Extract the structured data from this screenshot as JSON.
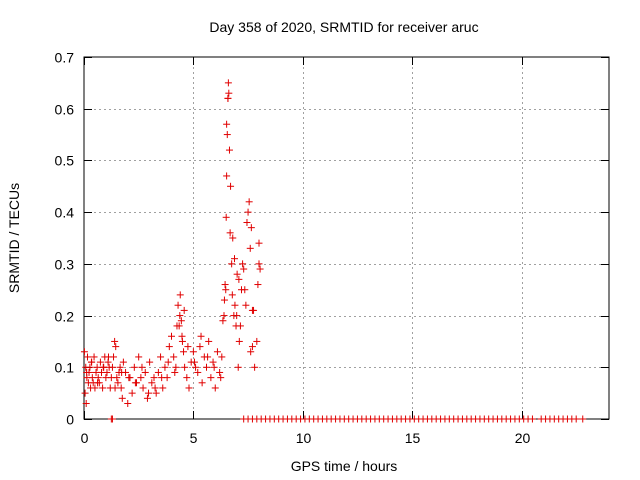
{
  "chart_data": {
    "type": "scatter",
    "title": "Day 358 of 2020, SRMTID for receiver aruc",
    "xlabel": "GPS time / hours",
    "ylabel": "SRMTID / TECUs",
    "xlim": [
      0,
      24
    ],
    "ylim": [
      0,
      0.7
    ],
    "xticks": [
      0,
      5,
      10,
      15,
      20
    ],
    "yticks": [
      0,
      0.1,
      0.2,
      0.3,
      0.4,
      0.5,
      0.6,
      0.7
    ],
    "xtick_labels": [
      "0",
      "5",
      "10",
      "15",
      "20"
    ],
    "ytick_labels": [
      "0",
      "0.1",
      "0.2",
      "0.3",
      "0.4",
      "0.5",
      "0.6",
      "0.7"
    ],
    "grid": true,
    "marker": "+",
    "color": "#e00000",
    "series": [
      {
        "name": "SRMTID",
        "x": [
          0.02,
          0.05,
          0.08,
          0.1,
          0.13,
          0.16,
          0.2,
          0.23,
          0.27,
          0.3,
          0.34,
          0.38,
          0.42,
          0.46,
          0.5,
          0.55,
          0.6,
          0.65,
          0.7,
          0.75,
          0.8,
          0.85,
          0.9,
          0.95,
          1.0,
          1.05,
          1.1,
          1.15,
          1.2,
          1.25,
          1.3,
          1.35,
          1.4,
          1.45,
          1.5,
          1.55,
          1.6,
          1.65,
          1.7,
          1.75,
          1.8,
          1.9,
          2.0,
          2.1,
          2.2,
          2.3,
          2.4,
          2.5,
          2.6,
          2.7,
          2.8,
          2.9,
          3.0,
          3.1,
          3.2,
          3.3,
          3.4,
          3.5,
          3.6,
          3.7,
          3.8,
          3.9,
          4.0,
          4.1,
          4.2,
          4.3,
          4.35,
          4.4,
          4.45,
          4.5,
          4.55,
          4.6,
          4.7,
          4.8,
          4.9,
          5.0,
          5.1,
          5.2,
          5.3,
          5.4,
          5.5,
          5.6,
          5.7,
          5.8,
          5.9,
          6.0,
          6.1,
          6.2,
          6.3,
          6.4,
          6.45,
          6.5,
          6.52,
          6.55,
          6.58,
          6.6,
          6.62,
          6.65,
          6.7,
          6.75,
          6.8,
          6.85,
          6.9,
          6.95,
          7.0,
          7.05,
          7.1,
          7.2,
          7.3,
          7.4,
          7.5,
          7.55,
          7.6,
          7.65,
          7.7,
          7.8,
          7.9,
          8.0,
          8.05,
          0.12,
          0.35,
          0.62,
          0.88,
          1.12,
          1.42,
          1.72,
          2.05,
          2.35,
          2.65,
          2.95,
          3.25,
          3.55,
          3.85,
          4.15,
          4.25,
          4.38,
          4.48,
          4.58,
          4.75,
          5.05,
          5.35,
          5.65,
          5.95,
          6.25,
          6.35,
          6.42,
          6.48,
          6.52,
          6.58,
          6.68,
          6.78,
          6.88,
          6.98,
          7.08,
          7.15,
          7.25,
          7.35,
          7.45,
          7.62,
          7.7,
          7.75,
          7.95,
          8.0,
          1.25,
          1.3,
          7.3,
          7.5,
          7.7,
          7.9,
          8.1,
          8.3,
          8.5,
          8.7,
          8.9,
          9.1,
          9.3,
          9.5,
          9.7,
          9.9,
          10.1,
          10.3,
          10.5,
          10.7,
          10.9,
          11.1,
          11.3,
          11.5,
          11.7,
          11.9,
          12.1,
          12.3,
          12.5,
          12.7,
          12.9,
          13.1,
          13.3,
          13.5,
          13.7,
          13.9,
          14.1,
          14.3,
          14.5,
          14.7,
          14.9,
          15.1,
          15.3,
          15.5,
          15.7,
          15.9,
          16.1,
          16.3,
          16.5,
          16.7,
          16.9,
          17.1,
          17.3,
          17.5,
          17.7,
          17.9,
          18.1,
          18.3,
          18.5,
          18.7,
          18.9,
          19.1,
          19.3,
          19.5,
          19.7,
          19.9,
          20.1,
          20.3,
          20.5,
          20.9,
          21.1,
          21.3,
          21.5,
          21.7,
          21.9,
          22.1,
          22.3,
          22.5,
          22.8
        ],
        "y": [
          0.13,
          0.05,
          0.1,
          0.03,
          0.08,
          0.12,
          0.07,
          0.09,
          0.1,
          0.06,
          0.11,
          0.08,
          0.07,
          0.12,
          0.06,
          0.09,
          0.1,
          0.08,
          0.07,
          0.11,
          0.09,
          0.06,
          0.1,
          0.12,
          0.08,
          0.09,
          0.11,
          0.1,
          0.06,
          0.08,
          0.1,
          0.12,
          0.15,
          0.14,
          0.08,
          0.07,
          0.09,
          0.1,
          0.06,
          0.04,
          0.11,
          0.09,
          0.03,
          0.08,
          0.05,
          0.1,
          0.07,
          0.12,
          0.08,
          0.06,
          0.09,
          0.04,
          0.11,
          0.07,
          0.08,
          0.05,
          0.09,
          0.12,
          0.06,
          0.1,
          0.08,
          0.14,
          0.16,
          0.12,
          0.1,
          0.22,
          0.18,
          0.24,
          0.19,
          0.15,
          0.13,
          0.1,
          0.08,
          0.06,
          0.11,
          0.13,
          0.1,
          0.09,
          0.14,
          0.07,
          0.12,
          0.1,
          0.15,
          0.08,
          0.11,
          0.06,
          0.13,
          0.09,
          0.12,
          0.2,
          0.26,
          0.39,
          0.47,
          0.55,
          0.62,
          0.65,
          0.63,
          0.52,
          0.45,
          0.3,
          0.35,
          0.2,
          0.22,
          0.18,
          0.28,
          0.1,
          0.15,
          0.25,
          0.29,
          0.22,
          0.4,
          0.42,
          0.33,
          0.37,
          0.21,
          0.1,
          0.15,
          0.34,
          0.29,
          0.09,
          0.11,
          0.07,
          0.1,
          0.12,
          0.06,
          0.09,
          0.08,
          0.07,
          0.1,
          0.05,
          0.06,
          0.08,
          0.11,
          0.09,
          0.18,
          0.2,
          0.16,
          0.21,
          0.14,
          0.11,
          0.16,
          0.12,
          0.1,
          0.08,
          0.19,
          0.23,
          0.25,
          0.57,
          0.62,
          0.36,
          0.24,
          0.31,
          0.2,
          0.27,
          0.18,
          0.3,
          0.25,
          0.38,
          0.13,
          0.14,
          0.21,
          0.26,
          0.3,
          0.0,
          0.0,
          0.0,
          0.0,
          0.0,
          0.0,
          0.0,
          0.0,
          0.0,
          0.0,
          0.0,
          0.0,
          0.0,
          0.0,
          0.0,
          0.0,
          0.0,
          0.0,
          0.0,
          0.0,
          0.0,
          0.0,
          0.0,
          0.0,
          0.0,
          0.0,
          0.0,
          0.0,
          0.0,
          0.0,
          0.0,
          0.0,
          0.0,
          0.0,
          0.0,
          0.0,
          0.0,
          0.0,
          0.0,
          0.0,
          0.0,
          0.0,
          0.0,
          0.0,
          0.0,
          0.0,
          0.0,
          0.0,
          0.0,
          0.0,
          0.0,
          0.0,
          0.0,
          0.0,
          0.0,
          0.0,
          0.0,
          0.0,
          0.0,
          0.0,
          0.0,
          0.0,
          0.0,
          0.0,
          0.0,
          0.0,
          0.0,
          0.0,
          0.0,
          0.0,
          0.0,
          0.0,
          0.0,
          0.0,
          0.0,
          0.0,
          0.0,
          0.0,
          0.0
        ]
      }
    ]
  }
}
